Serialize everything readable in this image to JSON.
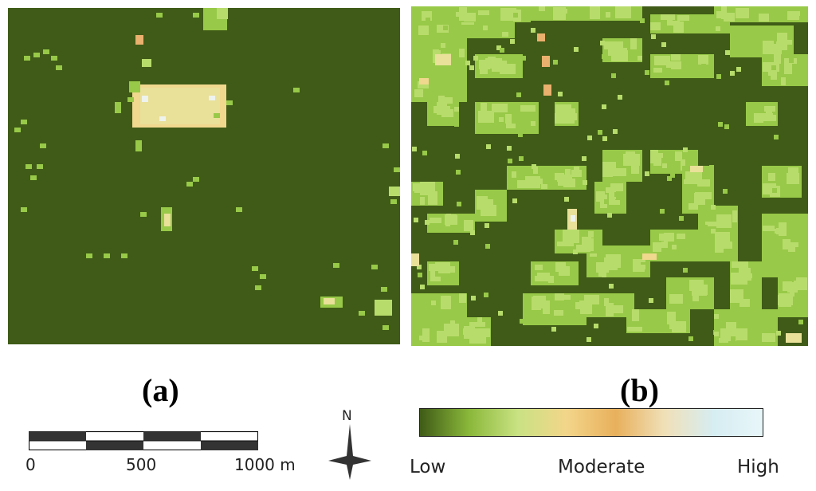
{
  "panels": [
    {
      "id": "a",
      "label": "(a)"
    },
    {
      "id": "b",
      "label": "(b)"
    }
  ],
  "scale_bar": {
    "ticks": [
      "0",
      "500",
      "1000 m"
    ]
  },
  "north_arrow": {
    "letter": "N",
    "icon": "north-arrow-icon"
  },
  "legend": {
    "labels": {
      "low": "Low",
      "moderate": "Moderate",
      "high": "High"
    },
    "colors": [
      "#3f5b17",
      "#8ab83a",
      "#c9e283",
      "#f3d58a",
      "#e8b05c",
      "#f0e0b8",
      "#d6edf2",
      "#e8f6f9"
    ]
  },
  "map_colors": {
    "background": "#3f5b17",
    "low_green": "#98c948",
    "light_green": "#b8dc6c",
    "pale_yellow": "#e9e09a",
    "yellow": "#f0d88e",
    "orange": "#eab06e",
    "white": "#eef3ee"
  }
}
